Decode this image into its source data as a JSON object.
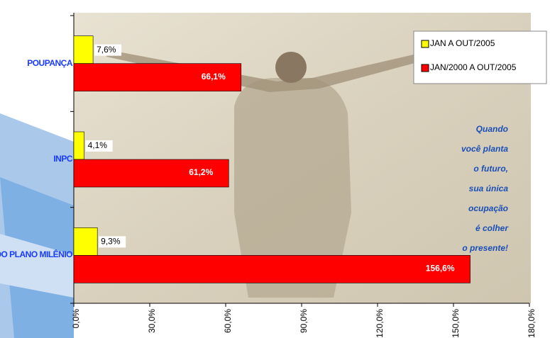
{
  "chart_data": {
    "type": "hbar",
    "categories": [
      "POUPANÇA",
      "INPC",
      "COTA DO PLANO MILÊNIO"
    ],
    "series": [
      {
        "name": "JAN A OUT/2005",
        "color": "#ffff00",
        "values": [
          7.6,
          4.1,
          9.3
        ],
        "value_labels": [
          "7,6%",
          "4,1%",
          "9,3%"
        ]
      },
      {
        "name": "JAN/2000 A OUT/2005",
        "color": "#ff0000",
        "values": [
          66.1,
          61.2,
          156.6
        ],
        "value_labels": [
          "66,1%",
          "61,2%",
          "156,6%"
        ]
      }
    ],
    "xlim": [
      0,
      180
    ],
    "xticks": [
      {
        "value": 0,
        "label": "0,0%"
      },
      {
        "value": 30,
        "label": "30,0%"
      },
      {
        "value": 60,
        "label": "60,0%"
      },
      {
        "value": 90,
        "label": "90,0%"
      },
      {
        "value": 120,
        "label": "120,0%"
      },
      {
        "value": 150,
        "label": "150,0%"
      },
      {
        "value": 180,
        "label": "180,0%"
      }
    ],
    "legend": "top-right",
    "annotation": [
      "Quando",
      "você planta",
      "o futuro,",
      "sua única",
      "ocupação",
      "é colher",
      "o presente!"
    ]
  }
}
